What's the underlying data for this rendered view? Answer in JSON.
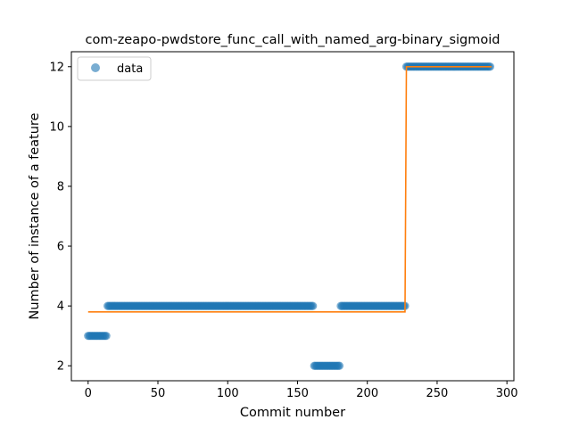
{
  "chart_data": {
    "type": "scatter",
    "title": "com-zeapo-pwdstore_func_call_with_named_arg-binary_sigmoid",
    "xlabel": "Commit number",
    "ylabel": "Number of instance of a feature",
    "xlim": [
      -12,
      305
    ],
    "ylim": [
      1.5,
      12.5
    ],
    "xticks": [
      0,
      50,
      100,
      150,
      200,
      250,
      300
    ],
    "yticks": [
      2,
      4,
      6,
      8,
      10,
      12
    ],
    "grid": false,
    "legend": {
      "placement": "top-left",
      "entries": [
        "data"
      ]
    },
    "colors": {
      "data": "#1f77b4",
      "fit": "#ff7f0e"
    },
    "series": [
      {
        "name": "data",
        "kind": "scatter",
        "segments": [
          {
            "x_start": 0,
            "x_end": 14,
            "y": 3
          },
          {
            "x_start": 14,
            "x_end": 162,
            "y": 4
          },
          {
            "x_start": 162,
            "x_end": 181,
            "y": 2
          },
          {
            "x_start": 181,
            "x_end": 228,
            "y": 4
          },
          {
            "x_start": 228,
            "x_end": 289,
            "y": 12
          }
        ]
      },
      {
        "kind": "line",
        "points": [
          [
            0,
            3.8
          ],
          [
            227,
            3.8
          ],
          [
            228,
            12
          ],
          [
            289,
            12
          ]
        ]
      }
    ]
  }
}
